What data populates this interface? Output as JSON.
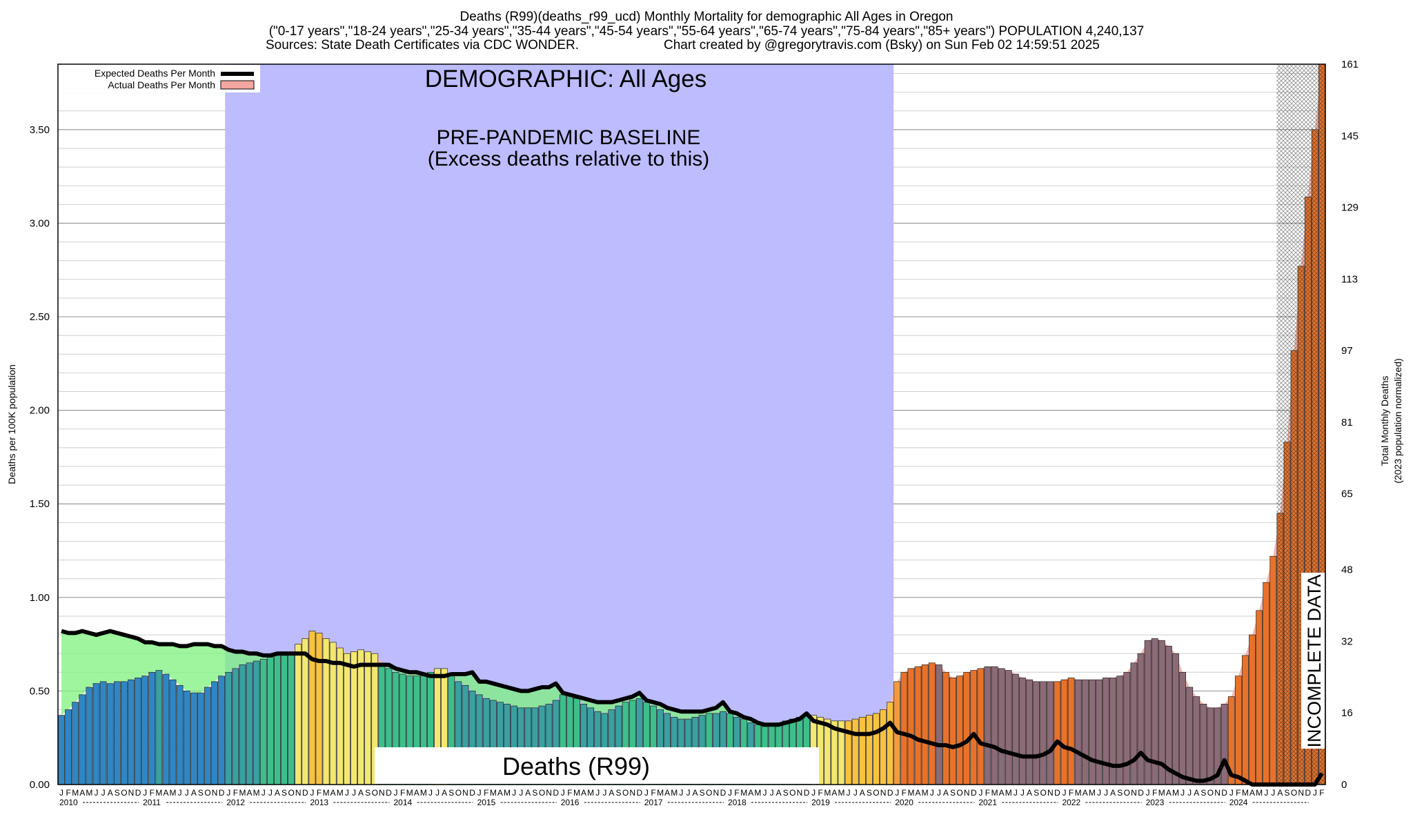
{
  "header": {
    "line1": "Deaths (R99)(deaths_r99_ucd) Monthly Mortality for demographic All Ages in Oregon",
    "line2": "(\"0-17 years\",\"18-24 years\",\"25-34 years\",\"35-44 years\",\"45-54 years\",\"55-64 years\",\"65-74 years\",\"75-84 years\",\"85+ years\") POPULATION 4,240,137",
    "line3_left": "Sources: State Death Certificates via CDC WONDER.",
    "line3_right": "Chart created by @gregorytravis.com (Bsky) on Sun Feb 02 14:59:51 2025"
  },
  "chart_data": {
    "type": "bar",
    "ylabel": "Deaths per 100K population",
    "y2label_line1": "Total Monthly Deaths",
    "y2label_line2": "(2023 population normalized)",
    "ylim": [
      0,
      3.85
    ],
    "y_ticks": [
      "0.00",
      "0.50",
      "1.00",
      "1.50",
      "2.00",
      "2.50",
      "3.00",
      "3.50"
    ],
    "y2_ticks": [
      "0",
      "16",
      "32",
      "48",
      "65",
      "81",
      "97",
      "113",
      "129",
      "145",
      "161"
    ],
    "y2_max": 161,
    "grid": true,
    "legend_position": "top-left",
    "legend": [
      {
        "label": "Expected Deaths Per Month",
        "color": "#000000"
      },
      {
        "label": "Actual Deaths Per Month",
        "color": "#f4a6a0"
      }
    ],
    "annotations": {
      "demographic": "DEMOGRAPHIC: All Ages",
      "baseline_line1": "PRE-PANDEMIC BASELINE",
      "baseline_line2": "(Excess deaths relative to this)",
      "cause": "Deaths (R99)",
      "incomplete": "INCOMPLETE DATA"
    },
    "month_letters": [
      "J",
      "F",
      "M",
      "A",
      "M",
      "J",
      "J",
      "A",
      "S",
      "O",
      "N",
      "D"
    ],
    "years": [
      "2010",
      "2011",
      "2012",
      "2013",
      "2014",
      "2015",
      "2016",
      "2017",
      "2018",
      "2019",
      "2020",
      "2021",
      "2022",
      "2023",
      "2024"
    ],
    "baseline_start": "2012-01",
    "baseline_end": "2019-12",
    "incomplete_from": "2024-08",
    "actual": [
      0.37,
      0.4,
      0.44,
      0.48,
      0.52,
      0.54,
      0.55,
      0.54,
      0.55,
      0.55,
      0.56,
      0.57,
      0.58,
      0.6,
      0.61,
      0.59,
      0.56,
      0.53,
      0.5,
      0.49,
      0.49,
      0.52,
      0.55,
      0.58,
      0.6,
      0.62,
      0.64,
      0.65,
      0.66,
      0.67,
      0.68,
      0.69,
      0.69,
      0.7,
      0.75,
      0.78,
      0.82,
      0.81,
      0.78,
      0.76,
      0.73,
      0.7,
      0.71,
      0.72,
      0.71,
      0.7,
      0.65,
      0.62,
      0.6,
      0.59,
      0.58,
      0.58,
      0.58,
      0.6,
      0.62,
      0.62,
      0.58,
      0.55,
      0.53,
      0.5,
      0.48,
      0.46,
      0.45,
      0.44,
      0.43,
      0.42,
      0.41,
      0.41,
      0.41,
      0.42,
      0.43,
      0.45,
      0.48,
      0.48,
      0.46,
      0.43,
      0.41,
      0.39,
      0.38,
      0.4,
      0.42,
      0.44,
      0.45,
      0.46,
      0.44,
      0.42,
      0.4,
      0.38,
      0.36,
      0.35,
      0.35,
      0.36,
      0.37,
      0.38,
      0.38,
      0.39,
      0.38,
      0.36,
      0.35,
      0.33,
      0.32,
      0.31,
      0.32,
      0.33,
      0.34,
      0.35,
      0.36,
      0.37,
      0.37,
      0.36,
      0.35,
      0.34,
      0.34,
      0.34,
      0.35,
      0.36,
      0.37,
      0.38,
      0.4,
      0.44,
      0.55,
      0.6,
      0.62,
      0.63,
      0.64,
      0.65,
      0.64,
      0.6,
      0.57,
      0.58,
      0.6,
      0.61,
      0.62,
      0.63,
      0.63,
      0.62,
      0.61,
      0.59,
      0.57,
      0.56,
      0.55,
      0.55,
      0.55,
      0.55,
      0.56,
      0.57,
      0.56,
      0.56,
      0.56,
      0.56,
      0.57,
      0.57,
      0.58,
      0.6,
      0.65,
      0.7,
      0.77,
      0.78,
      0.77,
      0.74,
      0.7,
      0.6,
      0.52,
      0.47,
      0.43,
      0.41,
      0.41,
      0.43,
      0.47,
      0.58,
      0.69,
      0.8,
      0.93,
      1.08,
      1.22,
      1.45,
      1.83,
      2.32,
      2.77,
      3.14,
      3.5,
      3.85
    ],
    "expected": [
      0.82,
      0.81,
      0.81,
      0.82,
      0.81,
      0.8,
      0.81,
      0.82,
      0.81,
      0.8,
      0.79,
      0.78,
      0.76,
      0.76,
      0.75,
      0.75,
      0.75,
      0.74,
      0.74,
      0.75,
      0.75,
      0.75,
      0.74,
      0.74,
      0.72,
      0.71,
      0.71,
      0.7,
      0.7,
      0.69,
      0.69,
      0.7,
      0.7,
      0.7,
      0.7,
      0.7,
      0.67,
      0.66,
      0.66,
      0.65,
      0.65,
      0.64,
      0.63,
      0.64,
      0.64,
      0.64,
      0.64,
      0.64,
      0.62,
      0.61,
      0.6,
      0.6,
      0.59,
      0.58,
      0.58,
      0.58,
      0.59,
      0.59,
      0.59,
      0.6,
      0.55,
      0.55,
      0.54,
      0.53,
      0.52,
      0.51,
      0.5,
      0.5,
      0.51,
      0.52,
      0.52,
      0.54,
      0.49,
      0.48,
      0.47,
      0.46,
      0.45,
      0.44,
      0.44,
      0.44,
      0.45,
      0.46,
      0.47,
      0.49,
      0.45,
      0.44,
      0.43,
      0.41,
      0.4,
      0.39,
      0.39,
      0.39,
      0.39,
      0.4,
      0.41,
      0.44,
      0.39,
      0.38,
      0.36,
      0.35,
      0.33,
      0.32,
      0.32,
      0.32,
      0.33,
      0.34,
      0.35,
      0.38,
      0.34,
      0.33,
      0.32,
      0.3,
      0.29,
      0.28,
      0.27,
      0.27,
      0.27,
      0.28,
      0.3,
      0.33,
      0.28,
      0.27,
      0.26,
      0.24,
      0.23,
      0.22,
      0.21,
      0.21,
      0.2,
      0.21,
      0.23,
      0.27,
      0.22,
      0.21,
      0.2,
      0.18,
      0.17,
      0.16,
      0.15,
      0.15,
      0.15,
      0.16,
      0.18,
      0.23,
      0.2,
      0.19,
      0.17,
      0.15,
      0.13,
      0.12,
      0.11,
      0.1,
      0.1,
      0.11,
      0.13,
      0.17,
      0.13,
      0.12,
      0.11,
      0.08,
      0.06,
      0.04,
      0.03,
      0.02,
      0.02,
      0.03,
      0.05,
      0.13,
      0.05,
      0.04,
      0.02,
      0.0,
      0.0,
      0.0,
      0.0,
      0.0,
      0.0,
      0.0,
      0.0,
      0.0,
      0.0,
      0.06
    ]
  }
}
